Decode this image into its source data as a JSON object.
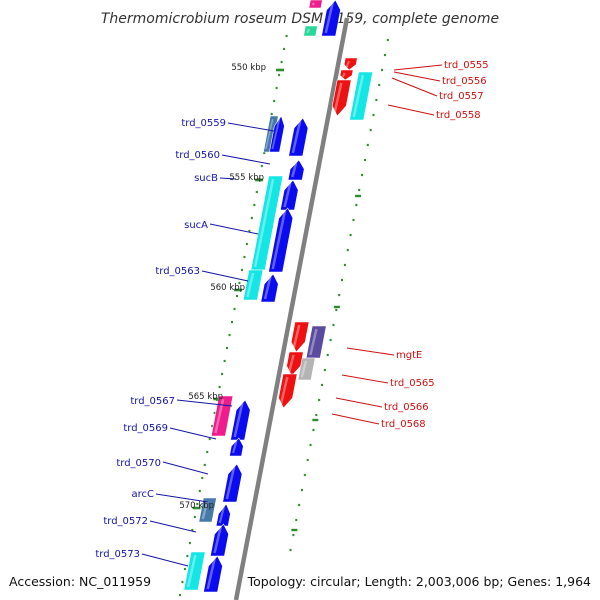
{
  "title": "Thermomicrobium roseum DSM 5159, complete genome",
  "accession": "Accession: NC_011959",
  "topology": "Topology: circular; Length: 2,003,006 bp; Genes: 1,964",
  "colors": {
    "backbone": "#808080",
    "tick": "#2e8b2e",
    "label_forward": "#1515a8",
    "label_reverse": "#cc1111",
    "blue": "#0b0bf0",
    "red": "#ee1111",
    "cyan": "#14e6e6",
    "magenta": "#ee1c8c",
    "steel": "#4678a8",
    "slate": "#5a4aa0",
    "grey": "#b4b4b4",
    "teal": "#28d89a"
  },
  "scale_labels": [
    "550 kbp",
    "555 kbp",
    "560 kbp",
    "565 kbp",
    "570 kbp"
  ],
  "forward_labels": [
    "trd_0559",
    "trd_0560",
    "sucB",
    "sucA",
    "trd_0563",
    "trd_0567",
    "trd_0569",
    "trd_0570",
    "arcC",
    "trd_0572",
    "trd_0573"
  ],
  "reverse_labels": [
    "trd_0555",
    "trd_0556",
    "trd_0557",
    "trd_0558",
    "mgtE",
    "trd_0565",
    "trd_0566",
    "trd_0568"
  ]
}
